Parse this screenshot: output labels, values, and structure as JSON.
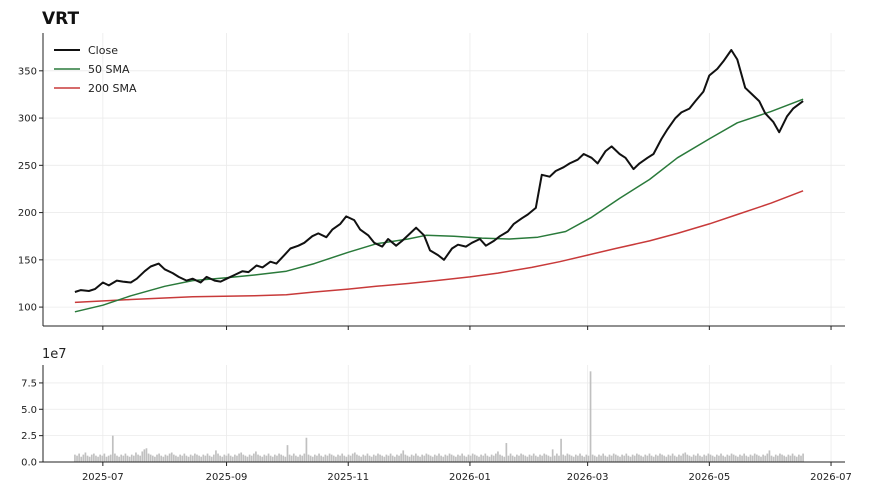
{
  "chart_data": [
    {
      "type": "line",
      "title": "VRT",
      "xlabel": "",
      "ylabel": "",
      "x_range": [
        "2025-06-01",
        "2026-07-08"
      ],
      "ylim": [
        80,
        390
      ],
      "y_ticks": [
        100,
        150,
        200,
        250,
        300,
        350
      ],
      "grid": true,
      "legend_position": "top-left",
      "series": [
        {
          "name": "Close",
          "color": "#111111",
          "points": [
            [
              "2025-06-17",
              116
            ],
            [
              "2025-06-20",
              118
            ],
            [
              "2025-06-24",
              117
            ],
            [
              "2025-06-27",
              119
            ],
            [
              "2025-07-01",
              126
            ],
            [
              "2025-07-04",
              123
            ],
            [
              "2025-07-08",
              128
            ],
            [
              "2025-07-11",
              127
            ],
            [
              "2025-07-15",
              126
            ],
            [
              "2025-07-18",
              130
            ],
            [
              "2025-07-22",
              138
            ],
            [
              "2025-07-25",
              143
            ],
            [
              "2025-07-29",
              146
            ],
            [
              "2025-08-01",
              140
            ],
            [
              "2025-08-05",
              136
            ],
            [
              "2025-08-08",
              132
            ],
            [
              "2025-08-12",
              128
            ],
            [
              "2025-08-15",
              130
            ],
            [
              "2025-08-19",
              126
            ],
            [
              "2025-08-22",
              132
            ],
            [
              "2025-08-26",
              128
            ],
            [
              "2025-08-29",
              127
            ],
            [
              "2025-09-02",
              131
            ],
            [
              "2025-09-05",
              134
            ],
            [
              "2025-09-09",
              138
            ],
            [
              "2025-09-12",
              137
            ],
            [
              "2025-09-16",
              144
            ],
            [
              "2025-09-19",
              142
            ],
            [
              "2025-09-23",
              148
            ],
            [
              "2025-09-26",
              146
            ],
            [
              "2025-09-30",
              155
            ],
            [
              "2025-10-03",
              162
            ],
            [
              "2025-10-07",
              165
            ],
            [
              "2025-10-10",
              168
            ],
            [
              "2025-10-14",
              175
            ],
            [
              "2025-10-17",
              178
            ],
            [
              "2025-10-21",
              174
            ],
            [
              "2025-10-24",
              182
            ],
            [
              "2025-10-28",
              188
            ],
            [
              "2025-10-31",
              196
            ],
            [
              "2025-11-04",
              192
            ],
            [
              "2025-11-07",
              182
            ],
            [
              "2025-11-11",
              176
            ],
            [
              "2025-11-14",
              168
            ],
            [
              "2025-11-18",
              164
            ],
            [
              "2025-11-21",
              172
            ],
            [
              "2025-11-25",
              165
            ],
            [
              "2025-11-28",
              170
            ],
            [
              "2025-12-02",
              178
            ],
            [
              "2025-12-05",
              184
            ],
            [
              "2025-12-09",
              176
            ],
            [
              "2025-12-12",
              160
            ],
            [
              "2025-12-16",
              155
            ],
            [
              "2025-12-19",
              150
            ],
            [
              "2025-12-23",
              162
            ],
            [
              "2025-12-26",
              166
            ],
            [
              "2025-12-30",
              164
            ],
            [
              "2026-01-02",
              168
            ],
            [
              "2026-01-06",
              172
            ],
            [
              "2026-01-09",
              165
            ],
            [
              "2026-01-13",
              170
            ],
            [
              "2026-01-16",
              175
            ],
            [
              "2026-01-20",
              180
            ],
            [
              "2026-01-23",
              188
            ],
            [
              "2026-01-27",
              194
            ],
            [
              "2026-01-30",
              198
            ],
            [
              "2026-02-03",
              205
            ],
            [
              "2026-02-06",
              240
            ],
            [
              "2026-02-10",
              238
            ],
            [
              "2026-02-13",
              244
            ],
            [
              "2026-02-17",
              248
            ],
            [
              "2026-02-20",
              252
            ],
            [
              "2026-02-24",
              256
            ],
            [
              "2026-02-27",
              262
            ],
            [
              "2026-03-03",
              258
            ],
            [
              "2026-03-06",
              252
            ],
            [
              "2026-03-10",
              265
            ],
            [
              "2026-03-13",
              270
            ],
            [
              "2026-03-17",
              262
            ],
            [
              "2026-03-20",
              258
            ],
            [
              "2026-03-24",
              246
            ],
            [
              "2026-03-27",
              252
            ],
            [
              "2026-03-31",
              258
            ],
            [
              "2026-04-03",
              262
            ],
            [
              "2026-04-07",
              278
            ],
            [
              "2026-04-10",
              288
            ],
            [
              "2026-04-14",
              300
            ],
            [
              "2026-04-17",
              306
            ],
            [
              "2026-04-21",
              310
            ],
            [
              "2026-04-24",
              318
            ],
            [
              "2026-04-28",
              328
            ],
            [
              "2026-05-01",
              345
            ],
            [
              "2026-05-05",
              352
            ],
            [
              "2026-05-08",
              360
            ],
            [
              "2026-05-12",
              372
            ],
            [
              "2026-05-15",
              362
            ],
            [
              "2026-05-19",
              332
            ],
            [
              "2026-05-22",
              326
            ],
            [
              "2026-05-26",
              318
            ],
            [
              "2026-05-29",
              305
            ],
            [
              "2026-06-02",
              296
            ],
            [
              "2026-06-05",
              285
            ],
            [
              "2026-06-09",
              302
            ],
            [
              "2026-06-12",
              310
            ],
            [
              "2026-06-17",
              318
            ]
          ]
        },
        {
          "name": "50 SMA",
          "color": "#2a7a3b",
          "points": [
            [
              "2025-06-17",
              95
            ],
            [
              "2025-07-01",
              102
            ],
            [
              "2025-07-15",
              112
            ],
            [
              "2025-08-01",
              122
            ],
            [
              "2025-08-15",
              128
            ],
            [
              "2025-09-01",
              131
            ],
            [
              "2025-09-15",
              134
            ],
            [
              "2025-10-01",
              138
            ],
            [
              "2025-10-15",
              146
            ],
            [
              "2025-11-01",
              158
            ],
            [
              "2025-11-15",
              167
            ],
            [
              "2025-12-01",
              172
            ],
            [
              "2025-12-10",
              176
            ],
            [
              "2025-12-24",
              175
            ],
            [
              "2026-01-07",
              173
            ],
            [
              "2026-01-21",
              172
            ],
            [
              "2026-02-04",
              174
            ],
            [
              "2026-02-18",
              180
            ],
            [
              "2026-03-03",
              195
            ],
            [
              "2026-03-17",
              215
            ],
            [
              "2026-04-01",
              235
            ],
            [
              "2026-04-15",
              258
            ],
            [
              "2026-05-01",
              278
            ],
            [
              "2026-05-15",
              295
            ],
            [
              "2026-06-01",
              307
            ],
            [
              "2026-06-17",
              320
            ]
          ]
        },
        {
          "name": "200 SMA",
          "color": "#c83a3a",
          "points": [
            [
              "2025-06-17",
              105
            ],
            [
              "2025-07-15",
              108
            ],
            [
              "2025-08-15",
              111
            ],
            [
              "2025-09-15",
              112
            ],
            [
              "2025-10-01",
              113
            ],
            [
              "2025-10-15",
              116
            ],
            [
              "2025-11-01",
              119
            ],
            [
              "2025-11-15",
              122
            ],
            [
              "2025-12-01",
              125
            ],
            [
              "2025-12-15",
              128
            ],
            [
              "2026-01-01",
              132
            ],
            [
              "2026-01-15",
              136
            ],
            [
              "2026-02-01",
              142
            ],
            [
              "2026-02-15",
              148
            ],
            [
              "2026-03-01",
              155
            ],
            [
              "2026-03-15",
              162
            ],
            [
              "2026-04-01",
              170
            ],
            [
              "2026-04-15",
              178
            ],
            [
              "2026-05-01",
              188
            ],
            [
              "2026-05-15",
              198
            ],
            [
              "2026-06-01",
              210
            ],
            [
              "2026-06-17",
              223
            ]
          ]
        }
      ]
    },
    {
      "type": "bar",
      "title": "",
      "xlabel": "",
      "ylabel": "",
      "offset_label": "1e7",
      "x_range": [
        "2025-06-01",
        "2026-07-08"
      ],
      "ylim": [
        0,
        9.2
      ],
      "y_ticks": [
        "0.0",
        "2.5",
        "5.0",
        "7.5"
      ],
      "x_tick_labels": [
        "2025-07",
        "2025-09",
        "2025-11",
        "2026-01",
        "2026-03",
        "2026-05",
        "2026-07"
      ],
      "x_tick_dates": [
        "2025-07-01",
        "2025-09-01",
        "2025-11-01",
        "2026-01-01",
        "2026-03-01",
        "2026-05-01",
        "2026-07-01"
      ],
      "grid": true,
      "color": "#c0c0c0",
      "start_date": "2025-06-17",
      "end_date": "2026-06-17",
      "series_name": "Volume",
      "values": [
        0.7,
        0.6,
        0.8,
        0.5,
        0.7,
        0.9,
        0.6,
        0.5,
        0.7,
        0.8,
        0.6,
        0.5,
        0.7,
        0.6,
        0.8,
        0.5,
        0.6,
        0.7,
        2.5,
        0.8,
        0.6,
        0.5,
        0.7,
        0.6,
        0.8,
        0.6,
        0.5,
        0.7,
        0.6,
        0.9,
        0.7,
        0.6,
        1.0,
        1.2,
        1.3,
        0.8,
        0.7,
        0.6,
        0.5,
        0.7,
        0.8,
        0.6,
        0.5,
        0.7,
        0.6,
        0.8,
        0.9,
        0.7,
        0.6,
        0.5,
        0.7,
        0.6,
        0.8,
        0.6,
        0.5,
        0.7,
        0.6,
        0.8,
        0.7,
        0.6,
        0.5,
        0.7,
        0.6,
        0.8,
        0.6,
        0.5,
        0.7,
        1.1,
        0.8,
        0.6,
        0.5,
        0.7,
        0.6,
        0.8,
        0.6,
        0.5,
        0.7,
        0.6,
        0.8,
        0.9,
        0.7,
        0.6,
        0.5,
        0.7,
        0.6,
        0.8,
        1.0,
        0.7,
        0.6,
        0.5,
        0.7,
        0.6,
        0.8,
        0.6,
        0.5,
        0.7,
        0.6,
        0.8,
        0.7,
        0.6,
        0.5,
        1.6,
        0.7,
        0.6,
        0.8,
        0.6,
        0.5,
        0.7,
        0.6,
        0.8,
        2.3,
        0.7,
        0.6,
        0.5,
        0.7,
        0.6,
        0.8,
        0.6,
        0.5,
        0.7,
        0.6,
        0.8,
        0.7,
        0.6,
        0.5,
        0.7,
        0.6,
        0.8,
        0.6,
        0.5,
        0.7,
        0.6,
        0.8,
        0.9,
        0.7,
        0.6,
        0.5,
        0.7,
        0.6,
        0.8,
        0.6,
        0.5,
        0.7,
        0.6,
        0.8,
        0.7,
        0.6,
        0.5,
        0.7,
        0.6,
        0.8,
        0.6,
        0.5,
        0.7,
        0.6,
        0.8,
        1.1,
        0.7,
        0.6,
        0.5,
        0.7,
        0.6,
        0.8,
        0.6,
        0.5,
        0.7,
        0.6,
        0.8,
        0.7,
        0.6,
        0.5,
        0.7,
        0.6,
        0.8,
        0.6,
        0.5,
        0.7,
        0.6,
        0.8,
        0.7,
        0.6,
        0.5,
        0.7,
        0.6,
        0.8,
        0.6,
        0.5,
        0.7,
        0.6,
        0.8,
        0.7,
        0.6,
        0.5,
        0.7,
        0.6,
        0.8,
        0.6,
        0.5,
        0.7,
        0.6,
        0.8,
        1.0,
        0.7,
        0.6,
        0.5,
        1.8,
        0.6,
        0.8,
        0.6,
        0.5,
        0.7,
        0.6,
        0.8,
        0.7,
        0.6,
        0.5,
        0.7,
        0.6,
        0.8,
        0.6,
        0.5,
        0.7,
        0.6,
        0.8,
        0.7,
        0.6,
        0.5,
        1.2,
        0.6,
        0.8,
        0.6,
        2.2,
        0.7,
        0.6,
        0.8,
        0.7,
        0.6,
        0.5,
        0.7,
        0.6,
        0.8,
        0.6,
        0.5,
        0.7,
        0.6,
        8.6,
        0.7,
        0.6,
        0.5,
        0.7,
        0.6,
        0.8,
        0.6,
        0.5,
        0.7,
        0.6,
        0.8,
        0.7,
        0.6,
        0.5,
        0.7,
        0.6,
        0.8,
        0.6,
        0.5,
        0.7,
        0.6,
        0.8,
        0.7,
        0.6,
        0.5,
        0.7,
        0.6,
        0.8,
        0.6,
        0.5,
        0.7,
        0.6,
        0.8,
        0.7,
        0.6,
        0.5,
        0.7,
        0.6,
        0.8,
        0.6,
        0.5,
        0.7,
        0.6,
        0.8,
        0.9,
        0.7,
        0.6,
        0.5,
        0.7,
        0.6,
        0.8,
        0.6,
        0.5,
        0.7,
        0.6,
        0.8,
        0.7,
        0.6,
        0.5,
        0.7,
        0.6,
        0.8,
        0.6,
        0.5,
        0.7,
        0.6,
        0.8,
        0.7,
        0.6,
        0.5,
        0.7,
        0.6,
        0.8,
        0.6,
        0.5,
        0.7,
        0.6,
        0.8,
        0.7,
        0.6,
        0.5,
        0.7,
        0.6,
        0.8,
        1.1,
        0.6,
        0.5,
        0.7,
        0.6,
        0.8,
        0.7,
        0.6,
        0.5,
        0.7,
        0.6,
        0.8,
        0.6,
        0.5,
        0.7,
        0.6,
        0.8
      ]
    }
  ]
}
